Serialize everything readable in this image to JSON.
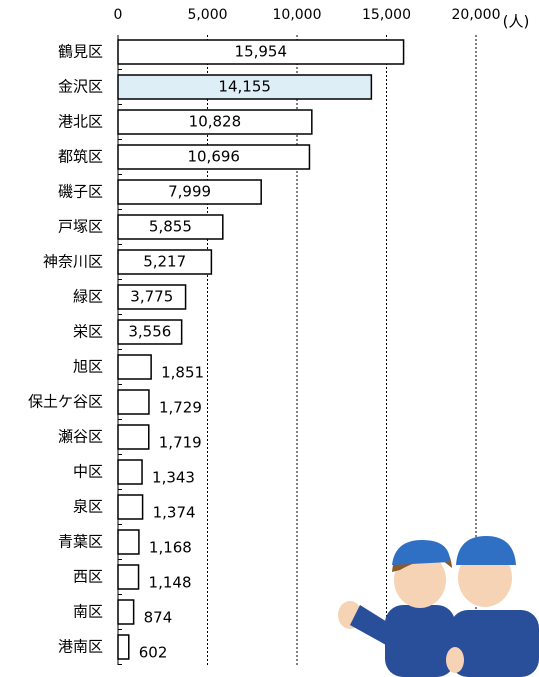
{
  "chart_data": {
    "type": "barh",
    "unit_label": "(人)",
    "categories": [
      "鶴見区",
      "金沢区",
      "港北区",
      "都筑区",
      "磯子区",
      "戸塚区",
      "神奈川区",
      "緑区",
      "栄区",
      "旭区",
      "保土ケ谷区",
      "瀬谷区",
      "中区",
      "泉区",
      "青葉区",
      "西区",
      "南区",
      "港南区"
    ],
    "values": [
      15954,
      14155,
      10828,
      10696,
      7999,
      5855,
      5217,
      3775,
      3556,
      1851,
      1729,
      1719,
      1343,
      1374,
      1168,
      1148,
      874,
      602
    ],
    "value_labels": [
      "15,954",
      "14,155",
      "10,828",
      "10,696",
      "7,999",
      "5,855",
      "5,217",
      "3,775",
      "3,556",
      "1,851",
      "1,729",
      "1,719",
      "1,343",
      "1,374",
      "1,168",
      "1,148",
      "874",
      "602"
    ],
    "colors": [
      "#ffffff",
      "#ddeef6",
      "#ffffff",
      "#ffffff",
      "#ffffff",
      "#ffffff",
      "#ffffff",
      "#ffffff",
      "#ffffff",
      "#ffffff",
      "#ffffff",
      "#ffffff",
      "#ffffff",
      "#ffffff",
      "#ffffff",
      "#ffffff",
      "#ffffff",
      "#ffffff"
    ],
    "xlim": [
      0,
      20000
    ],
    "xticks": [
      0,
      {
        "value": 5000,
        "label": "5,000"
      },
      {
        "value": 10000,
        "label": "10,000"
      },
      {
        "value": 15000,
        "label": "15,000"
      },
      {
        "value": 20000,
        "label": "20,000"
      }
    ],
    "grid": true
  }
}
